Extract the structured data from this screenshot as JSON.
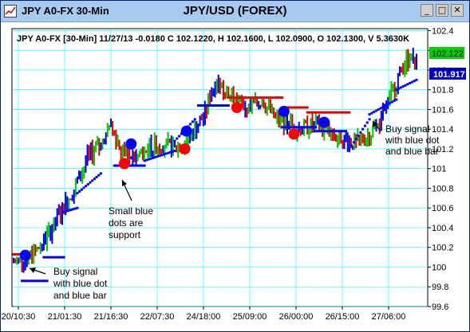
{
  "window": {
    "title": "JPY A0-FX 30-Min",
    "chart_title": "JPY/USD (FOREX)",
    "minimize_glyph": "_",
    "maximize_glyph": "□",
    "close_glyph": "✕",
    "icon": "chart-icon"
  },
  "info_line": "JPY A0-FX [30-Min] 11/27/13  -0.0180 C 102.1220, H 102.1600, L 102.0900, O 102.1300, V 5.3630K",
  "price_labels": {
    "last_close": "102.122",
    "indicator": "101.917"
  },
  "colors": {
    "up_bar": "#00c800",
    "down_bar": "#e00000",
    "neutral_bar": "#0000e0",
    "support": "#0000ff",
    "resistance": "#e00000",
    "grid": "#00ffff",
    "price_tag": "#00d000",
    "indicator_tag": "#0000c0"
  },
  "chart_data": {
    "type": "candlestick",
    "title": "JPY/USD (FOREX)",
    "x_tick_labels": [
      "20/10:30",
      "21/01:30",
      "21/16:30",
      "22/07:30",
      "24/18:00",
      "25/09:00",
      "26/00:00",
      "26/15:00",
      "27/06:00"
    ],
    "y_ticks": [
      99.6,
      99.8,
      100,
      100.2,
      100.4,
      100.6,
      100.8,
      101,
      101.2,
      101.4,
      101.6,
      101.8,
      102,
      102.2,
      102.4
    ],
    "ylim": [
      99.6,
      102.42
    ],
    "grid": true,
    "price_path": [
      [
        0,
        100.05
      ],
      [
        10,
        100.1
      ],
      [
        18,
        100.25
      ],
      [
        28,
        100.55
      ],
      [
        36,
        100.8
      ],
      [
        44,
        101.1
      ],
      [
        52,
        101.25
      ],
      [
        58,
        101.4
      ],
      [
        64,
        101.2
      ],
      [
        72,
        101.1
      ],
      [
        80,
        101.2
      ],
      [
        88,
        101.25
      ],
      [
        96,
        101.2
      ],
      [
        104,
        101.3
      ],
      [
        110,
        101.45
      ],
      [
        114,
        101.55
      ],
      [
        118,
        101.8
      ],
      [
        122,
        101.9
      ],
      [
        126,
        101.8
      ],
      [
        132,
        101.7
      ],
      [
        140,
        101.6
      ],
      [
        148,
        101.7
      ],
      [
        156,
        101.5
      ],
      [
        164,
        101.45
      ],
      [
        172,
        101.4
      ],
      [
        180,
        101.45
      ],
      [
        188,
        101.35
      ],
      [
        196,
        101.3
      ],
      [
        204,
        101.25
      ],
      [
        212,
        101.35
      ],
      [
        218,
        101.45
      ],
      [
        224,
        101.7
      ],
      [
        228,
        101.9
      ],
      [
        234,
        102.1
      ],
      [
        240,
        102.12
      ]
    ],
    "support_segments": [
      {
        "x": [
          5,
          20
        ],
        "y": [
          99.86,
          99.86
        ]
      },
      {
        "x": [
          18,
          30
        ],
        "y": [
          100.1,
          100.1
        ]
      },
      {
        "x": [
          30,
          38
        ],
        "y": [
          100.56,
          100.6
        ]
      },
      {
        "x": [
          38,
          52
        ],
        "y": [
          100.75,
          100.95
        ]
      },
      {
        "x": [
          60,
          78
        ],
        "y": [
          101.03,
          101.03
        ]
      },
      {
        "x": [
          78,
          96
        ],
        "y": [
          101.08,
          101.18
        ]
      },
      {
        "x": [
          96,
          108
        ],
        "y": [
          101.28,
          101.5
        ]
      },
      {
        "x": [
          110,
          128
        ],
        "y": [
          101.64,
          101.64
        ]
      },
      {
        "x": [
          160,
          180
        ],
        "y": [
          101.42,
          101.42
        ]
      },
      {
        "x": [
          180,
          198
        ],
        "y": [
          101.38,
          101.38
        ]
      },
      {
        "x": [
          200,
          212
        ],
        "y": [
          101.2,
          101.5
        ]
      },
      {
        "x": [
          212,
          228
        ],
        "y": [
          101.55,
          101.7
        ]
      },
      {
        "x": [
          228,
          240
        ],
        "y": [
          101.8,
          101.9
        ]
      }
    ],
    "resistance_segments": [
      {
        "x": [
          0,
          6
        ],
        "y": [
          100.13,
          100.13
        ]
      },
      {
        "x": [
          128,
          160
        ],
        "y": [
          101.72,
          101.72
        ]
      },
      {
        "x": [
          160,
          175
        ],
        "y": [
          101.62,
          101.62
        ]
      },
      {
        "x": [
          175,
          200
        ],
        "y": [
          101.57,
          101.57
        ]
      }
    ],
    "signals": [
      {
        "type": "buy",
        "color": "blue",
        "x": 7,
        "y": 100.12
      },
      {
        "type": "buy",
        "color": "blue",
        "x": 70,
        "y": 101.25
      },
      {
        "type": "sell",
        "color": "red",
        "x": 66,
        "y": 101.05
      },
      {
        "type": "sell",
        "color": "red",
        "x": 102,
        "y": 101.2
      },
      {
        "type": "buy",
        "color": "blue",
        "x": 103,
        "y": 101.38
      },
      {
        "type": "sell",
        "color": "red",
        "x": 133,
        "y": 101.62
      },
      {
        "type": "buy",
        "color": "blue",
        "x": 161,
        "y": 101.58
      },
      {
        "type": "sell",
        "color": "red",
        "x": 167,
        "y": 101.35
      },
      {
        "type": "buy",
        "color": "blue",
        "x": 185,
        "y": 101.47
      }
    ],
    "annotations": [
      {
        "lines": [
          "Buy signal",
          "with blue dot",
          "and blue bar"
        ]
      },
      {
        "lines": [
          "Small blue",
          "dots are",
          "support"
        ]
      },
      {
        "lines": [
          "Buy signal",
          "with blue dot",
          "and blue bar"
        ]
      }
    ]
  }
}
